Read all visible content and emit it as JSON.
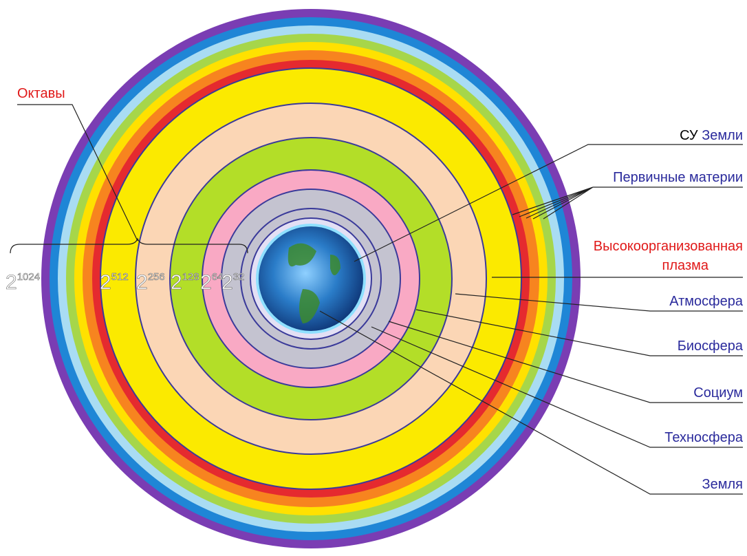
{
  "title": "Октавы",
  "octaves": [
    {
      "base": "2",
      "exp": "1024"
    },
    {
      "base": "2",
      "exp": "512"
    },
    {
      "base": "2",
      "exp": "256"
    },
    {
      "base": "2",
      "exp": "128"
    },
    {
      "base": "2",
      "exp": "64"
    },
    {
      "base": "2",
      "exp": "32"
    }
  ],
  "labels": {
    "su": "СУ",
    "earth_of": "Земли",
    "primary": "Первичные материи",
    "plasma_1": "Высокоорганизованная",
    "plasma_2": "плазма",
    "atmosphere": "Атмосфера",
    "biosphere": "Биосфера",
    "society": "Социум",
    "technosphere": "Техносфера",
    "earth": "Земля"
  }
}
